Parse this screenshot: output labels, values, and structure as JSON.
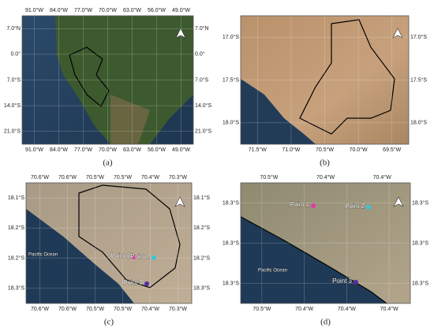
{
  "panels": [
    {
      "caption": "(a)",
      "lon_top": [
        "91.0°W",
        "84.0°W",
        "77.0°W",
        "70.0°W",
        "63.0°W",
        "56.0°W",
        "49.0°W"
      ],
      "lon_bottom": [
        "91.0°W",
        "84.0°W",
        "77.0°W",
        "70.0°W",
        "63.0°W",
        "56.0°W",
        "49.0°W"
      ],
      "lat_left": [
        "7.0°N",
        "0.0°",
        "7.0°S",
        "14.0°S",
        "21.0°S"
      ],
      "lat_right": [
        "7.0°N",
        "0.0°",
        "7.0°S",
        "14.0°S",
        "21.0°S"
      ],
      "points": [],
      "places": []
    },
    {
      "caption": "(b)",
      "lon_top": [],
      "lon_bottom": [
        "71.5°W",
        "71.0°W",
        "70.5°W",
        "70.0°W",
        "69.5°W"
      ],
      "lat_left": [
        "17.0°S",
        "17.5°S",
        "18.0°S"
      ],
      "lat_right": [
        "17.0°S",
        "17.5°S",
        "18.0°S"
      ],
      "points": [],
      "places": []
    },
    {
      "caption": "(c)",
      "lon_top": [
        "70.6°W",
        "70.6°W",
        "70.5°W",
        "70.5°W",
        "70.4°W",
        "70.3°W"
      ],
      "lon_bottom": [
        "70.6°W",
        "70.6°W",
        "70.5°W",
        "70.5°W",
        "70.4°W",
        "70.3°W"
      ],
      "lat_left": [
        "18.1°S",
        "18.2°S",
        "18.2°S",
        "18.3°S"
      ],
      "lat_right": [
        "18.1°S",
        "18.2°S",
        "18.2°S",
        "18.3°S"
      ],
      "points": [
        "Point 1",
        "Point 2",
        "Point 3"
      ],
      "places": [
        "Pacific Ocean"
      ]
    },
    {
      "caption": "(d)",
      "lon_top": [
        "70.5°W",
        "70.4°W",
        "70.4°W"
      ],
      "lon_bottom": [
        "70.5°W",
        "70.4°W",
        "70.4°W",
        "70.4°W"
      ],
      "lat_left": [
        "18.3°S",
        "18.3°S",
        "18.3°S"
      ],
      "lat_right": [
        "18.3°S",
        "18.3°S",
        "18.3°S"
      ],
      "points": [
        "Point 1",
        "Point 2",
        "Point 3"
      ],
      "places": [
        "Pacific Ocean"
      ]
    }
  ]
}
